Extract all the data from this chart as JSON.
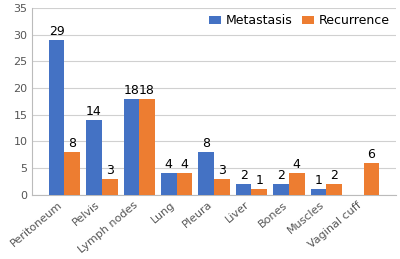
{
  "categories": [
    "Peritoneum",
    "Pelvis",
    "Lymph nodes",
    "Lung",
    "Pleura",
    "Liver",
    "Bones",
    "Muscles",
    "Vaginal cuff"
  ],
  "metastasis": [
    29,
    14,
    18,
    4,
    8,
    2,
    2,
    1,
    0
  ],
  "recurrence": [
    8,
    3,
    18,
    4,
    3,
    1,
    4,
    2,
    6
  ],
  "metastasis_color": "#4472C4",
  "recurrence_color": "#ED7D31",
  "ylim": [
    0,
    35
  ],
  "yticks": [
    0,
    5,
    10,
    15,
    20,
    25,
    30,
    35
  ],
  "legend_labels": [
    "Metastasis",
    "Recurrence"
  ],
  "bar_width": 0.42,
  "background_color": "#FFFFFF",
  "grid_color": "#D0D0D0",
  "label_fontsize": 9,
  "tick_fontsize": 8,
  "legend_fontsize": 9
}
